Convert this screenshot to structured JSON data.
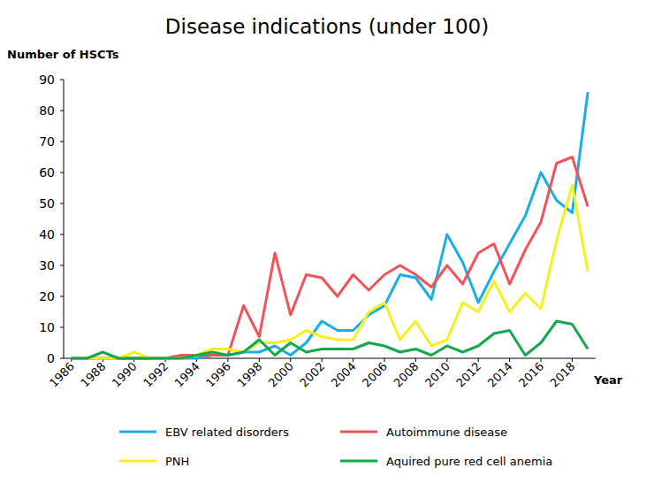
{
  "chart_data": {
    "type": "line",
    "title": "Disease indications (under 100)",
    "y_label": "Number of HSCTs",
    "x_label": "Year",
    "x": [
      1986,
      1987,
      1988,
      1989,
      1990,
      1991,
      1992,
      1993,
      1994,
      1995,
      1996,
      1997,
      1998,
      1999,
      2000,
      2001,
      2002,
      2003,
      2004,
      2005,
      2006,
      2007,
      2008,
      2009,
      2010,
      2011,
      2012,
      2013,
      2014,
      2015,
      2016,
      2017,
      2018,
      2019
    ],
    "xlim": [
      1985.5,
      2019.5
    ],
    "xticks": [
      1986,
      1988,
      1990,
      1992,
      1994,
      1996,
      1998,
      2000,
      2002,
      2004,
      2006,
      2008,
      2010,
      2012,
      2014,
      2016,
      2018
    ],
    "ylim": [
      0,
      90
    ],
    "yticks": [
      0,
      10,
      20,
      30,
      40,
      50,
      60,
      70,
      80,
      90
    ],
    "grid": false,
    "legend": "bottom",
    "series": [
      {
        "name": "EBV related disorders",
        "color": "#1aaee8",
        "values": [
          0,
          0,
          0,
          0,
          0,
          0,
          0,
          0,
          0,
          1,
          1,
          2,
          2,
          4,
          1,
          5,
          12,
          9,
          9,
          14,
          17,
          27,
          26,
          19,
          40,
          31,
          18,
          28,
          37,
          46,
          60,
          51,
          47,
          86
        ]
      },
      {
        "name": "Autoimmune disease",
        "color": "#f0545a",
        "values": [
          0,
          0,
          0,
          0,
          0,
          0,
          0,
          1,
          1,
          1,
          1,
          17,
          7,
          34,
          14,
          27,
          26,
          20,
          27,
          22,
          27,
          30,
          27,
          23,
          30,
          24,
          34,
          37,
          24,
          35,
          44,
          63,
          65,
          49
        ]
      },
      {
        "name": "PNH",
        "color": "#f5f01e",
        "values": [
          0,
          0,
          0,
          0,
          2,
          0,
          0,
          0,
          1,
          3,
          3,
          2,
          5,
          5,
          6,
          9,
          7,
          6,
          6,
          15,
          18,
          6,
          12,
          4,
          6,
          18,
          15,
          25,
          15,
          21,
          16,
          38,
          56,
          28
        ]
      },
      {
        "name": "Aquired pure red cell anemia",
        "color": "#13a84a",
        "values": [
          0,
          0,
          2,
          0,
          0,
          0,
          0,
          0,
          1,
          2,
          1,
          2,
          6,
          1,
          5,
          2,
          3,
          3,
          3,
          5,
          4,
          2,
          3,
          1,
          4,
          2,
          4,
          8,
          9,
          1,
          5,
          12,
          11,
          3
        ]
      }
    ]
  }
}
